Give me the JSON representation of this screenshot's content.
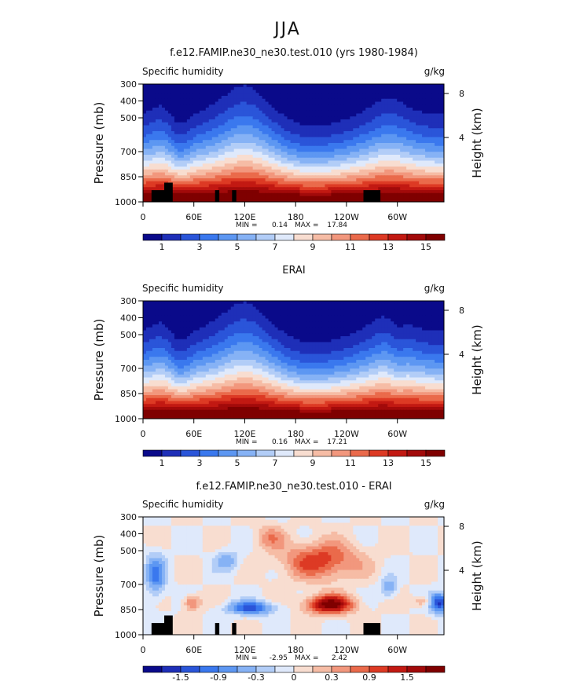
{
  "chart_data": {
    "type": "heatmap",
    "title": "JJA",
    "shared": {
      "x_ticks": [
        "0",
        "60E",
        "120E",
        "180",
        "120W",
        "60W"
      ],
      "x_tick_values": [
        0,
        60,
        120,
        180,
        240,
        300
      ],
      "x_range": [
        0,
        355
      ],
      "y_ticks": [
        "300",
        "400",
        "500",
        "700",
        "850",
        "1000"
      ],
      "y_tick_values": [
        300,
        400,
        500,
        700,
        850,
        1000
      ],
      "y_range": [
        300,
        1000
      ],
      "ylabel_left": "Pressure (mb)",
      "ylabel_right": "Height (km)",
      "right_ticks": [
        "8",
        "4"
      ],
      "right_tick_pressures": [
        356,
        616
      ],
      "field_label": "Specific humidity",
      "units": "g/kg"
    },
    "panels": [
      {
        "id": "model",
        "subtitle": "f.e12.FAMIP.ne30_ne30.test.010 (yrs 1980-1984)",
        "min_label": "MIN =",
        "min": "0.14",
        "max_label": "MAX =",
        "max": "17.84",
        "kind": "abs",
        "colorbar_labels": [
          "1",
          "3",
          "5",
          "7",
          "9",
          "11",
          "13",
          "15"
        ],
        "colorbar_colors": [
          "#0a0a8a",
          "#1e2fb8",
          "#2a55d9",
          "#3a78ee",
          "#5d97f2",
          "#86b2f5",
          "#b2cdf7",
          "#dfe9fb",
          "#f8ddd0",
          "#f6bca5",
          "#f2977d",
          "#ea6a4b",
          "#dd3a24",
          "#c21912",
          "#a20a0a",
          "#7f0000"
        ],
        "terrain": [
          [
            10,
            30,
            930
          ],
          [
            25,
            35,
            885
          ],
          [
            85,
            90,
            930
          ],
          [
            105,
            110,
            930
          ],
          [
            260,
            280,
            930
          ]
        ]
      },
      {
        "id": "obs",
        "subtitle": "ERAI",
        "min_label": "MIN =",
        "min": "0.16",
        "max_label": "MAX =",
        "max": "17.21",
        "kind": "abs",
        "colorbar_labels": [
          "1",
          "3",
          "5",
          "7",
          "9",
          "11",
          "13",
          "15"
        ],
        "colorbar_colors": [
          "#0a0a8a",
          "#1e2fb8",
          "#2a55d9",
          "#3a78ee",
          "#5d97f2",
          "#86b2f5",
          "#b2cdf7",
          "#dfe9fb",
          "#f8ddd0",
          "#f6bca5",
          "#f2977d",
          "#ea6a4b",
          "#dd3a24",
          "#c21912",
          "#a20a0a",
          "#7f0000"
        ],
        "terrain": []
      },
      {
        "id": "diff",
        "subtitle": "f.e12.FAMIP.ne30_ne30.test.010 - ERAI",
        "min_label": "MIN =",
        "min": "-2.95",
        "max_label": "MAX =",
        "max": "2.42",
        "kind": "diff",
        "colorbar_labels": [
          "-1.5",
          "-0.9",
          "-0.3",
          "0",
          "0.3",
          "0.9",
          "1.5"
        ],
        "colorbar_colors": [
          "#0a0a8a",
          "#1e2fb8",
          "#2a55d9",
          "#3a78ee",
          "#5d97f2",
          "#86b2f5",
          "#b2cdf7",
          "#dfe9fb",
          "#f8ddd0",
          "#f6bca5",
          "#f2977d",
          "#ea6a4b",
          "#dd3a24",
          "#c21912",
          "#a20a0a",
          "#7f0000"
        ],
        "terrain": [
          [
            10,
            30,
            930
          ],
          [
            25,
            35,
            885
          ],
          [
            85,
            90,
            930
          ],
          [
            105,
            110,
            930
          ],
          [
            260,
            280,
            930
          ]
        ]
      }
    ]
  }
}
